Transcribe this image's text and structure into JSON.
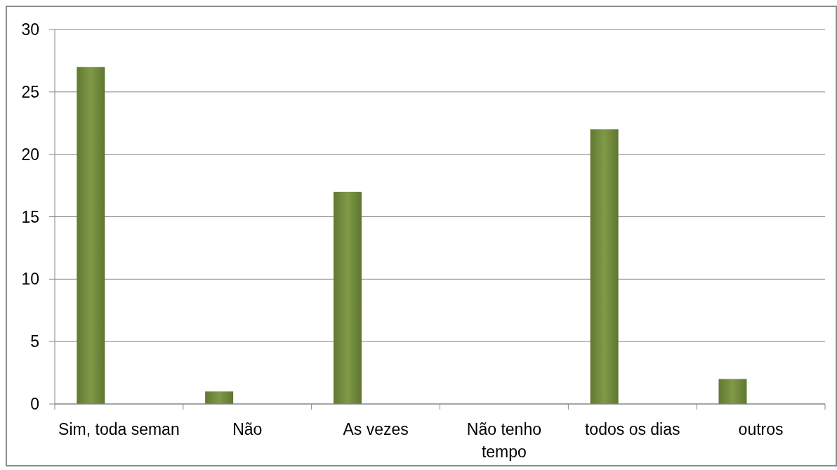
{
  "chart_data": {
    "type": "bar",
    "categories": [
      "Sim, toda seman",
      "Não",
      "As vezes",
      "Não tenho tempo",
      "todos os dias",
      "outros"
    ],
    "values": [
      27,
      1,
      17,
      0,
      22,
      2
    ],
    "color": "#77933c",
    "ylim": [
      0,
      30
    ],
    "yticks": [
      0,
      5,
      10,
      15,
      20,
      25,
      30
    ],
    "grid": "y"
  }
}
